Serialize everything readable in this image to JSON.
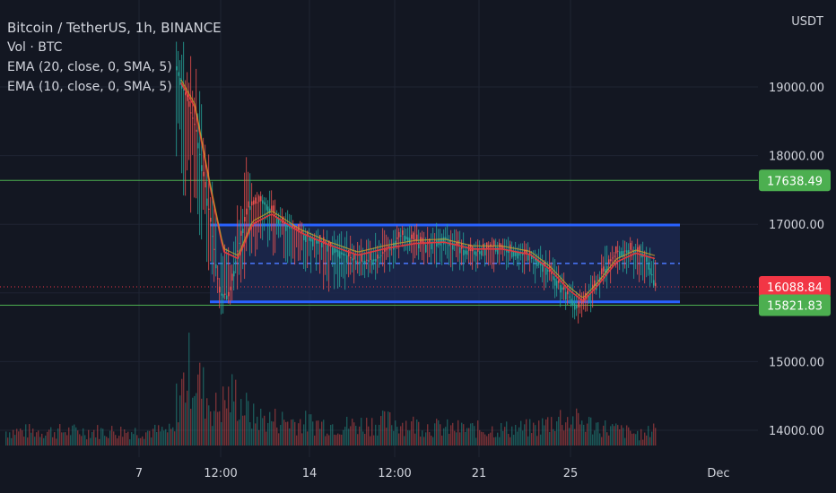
{
  "legend": {
    "symbol": "Bitcoin / TetherUS, 1h, BINANCE",
    "volume": "Vol · BTC",
    "ema_20": "EMA (20, close, 0, SMA, 5)",
    "ema_10": "EMA (10, close, 0, SMA, 5)"
  },
  "price_axis": {
    "unit": "USDT",
    "ticks": [
      19000,
      18000,
      17000,
      16000,
      15000,
      14000
    ],
    "tick_labels": [
      "19000.00",
      "18000.00",
      "17000.00",
      "16000.00",
      "15000.00",
      "14000.00"
    ]
  },
  "time_axis": {
    "labels": [
      "7",
      "12:00",
      "14",
      "12:00",
      "21",
      "25",
      "Dec"
    ]
  },
  "colors": {
    "background": "#131722",
    "grid": "#1f2433",
    "candle_up": "#26a69a",
    "candle_down": "#ef5350",
    "ema": "#e03a3e",
    "level_line": "#4caf50",
    "range_border": "#2962ff",
    "range_fill": "#1e2b55",
    "last_price": "#f23645"
  },
  "chart_data": {
    "type": "candlestick",
    "title": "Bitcoin / TetherUS, 1h, BINANCE",
    "ylabel": "USDT",
    "ylim": [
      13800,
      19700
    ],
    "x_axis_labels": [
      "7",
      "12:00",
      "14",
      "12:00",
      "21",
      "25",
      "Dec"
    ],
    "price_path": [
      [
        0.0,
        19300
      ],
      [
        0.04,
        18400
      ],
      [
        0.07,
        17100
      ],
      [
        0.09,
        16000
      ],
      [
        0.11,
        15950
      ],
      [
        0.13,
        16700
      ],
      [
        0.15,
        17250
      ],
      [
        0.18,
        17350
      ],
      [
        0.22,
        17020
      ],
      [
        0.28,
        16800
      ],
      [
        0.33,
        16650
      ],
      [
        0.38,
        16450
      ],
      [
        0.42,
        16500
      ],
      [
        0.47,
        16850
      ],
      [
        0.52,
        16700
      ],
      [
        0.56,
        16820
      ],
      [
        0.6,
        16620
      ],
      [
        0.63,
        16600
      ],
      [
        0.66,
        16680
      ],
      [
        0.7,
        16620
      ],
      [
        0.75,
        16520
      ],
      [
        0.78,
        16300
      ],
      [
        0.82,
        15950
      ],
      [
        0.84,
        15780
      ],
      [
        0.86,
        15950
      ],
      [
        0.89,
        16300
      ],
      [
        0.92,
        16600
      ],
      [
        0.95,
        16630
      ],
      [
        0.98,
        16560
      ],
      [
        1.0,
        16100
      ]
    ],
    "price_high_path": [
      [
        0.0,
        19800
      ],
      [
        0.04,
        19400
      ],
      [
        0.07,
        17900
      ],
      [
        0.09,
        16700
      ],
      [
        0.12,
        16900
      ],
      [
        0.14,
        18150
      ],
      [
        0.16,
        17600
      ],
      [
        0.2,
        17450
      ],
      [
        0.26,
        17000
      ],
      [
        0.32,
        16900
      ],
      [
        0.4,
        16800
      ],
      [
        0.46,
        17000
      ],
      [
        0.52,
        16950
      ],
      [
        0.56,
        17000
      ],
      [
        0.62,
        16800
      ],
      [
        0.7,
        16820
      ],
      [
        0.78,
        16600
      ],
      [
        0.84,
        16000
      ],
      [
        0.9,
        16700
      ],
      [
        0.95,
        16800
      ],
      [
        1.0,
        16650
      ]
    ],
    "price_low_path": [
      [
        0.0,
        17600
      ],
      [
        0.04,
        17000
      ],
      [
        0.07,
        16200
      ],
      [
        0.09,
        15700
      ],
      [
        0.12,
        15900
      ],
      [
        0.14,
        16200
      ],
      [
        0.18,
        16700
      ],
      [
        0.22,
        16400
      ],
      [
        0.28,
        16250
      ],
      [
        0.33,
        15900
      ],
      [
        0.38,
        16100
      ],
      [
        0.46,
        16350
      ],
      [
        0.52,
        16400
      ],
      [
        0.58,
        16350
      ],
      [
        0.64,
        16350
      ],
      [
        0.72,
        16300
      ],
      [
        0.78,
        15950
      ],
      [
        0.84,
        15560
      ],
      [
        0.88,
        15900
      ],
      [
        0.93,
        16300
      ],
      [
        1.0,
        16050
      ]
    ],
    "ema_path": [
      [
        0.0,
        19200
      ],
      [
        0.04,
        18700
      ],
      [
        0.07,
        17600
      ],
      [
        0.1,
        16600
      ],
      [
        0.13,
        16500
      ],
      [
        0.16,
        17000
      ],
      [
        0.2,
        17150
      ],
      [
        0.26,
        16880
      ],
      [
        0.32,
        16700
      ],
      [
        0.38,
        16550
      ],
      [
        0.44,
        16650
      ],
      [
        0.5,
        16720
      ],
      [
        0.56,
        16740
      ],
      [
        0.62,
        16640
      ],
      [
        0.68,
        16640
      ],
      [
        0.74,
        16560
      ],
      [
        0.78,
        16350
      ],
      [
        0.82,
        16050
      ],
      [
        0.85,
        15880
      ],
      [
        0.88,
        16100
      ],
      [
        0.92,
        16450
      ],
      [
        0.96,
        16580
      ],
      [
        1.0,
        16500
      ]
    ],
    "volume_profile": [
      [
        0.0,
        0.55
      ],
      [
        0.03,
        1.0
      ],
      [
        0.05,
        0.75
      ],
      [
        0.08,
        0.45
      ],
      [
        0.12,
        0.65
      ],
      [
        0.16,
        0.35
      ],
      [
        0.25,
        0.3
      ],
      [
        0.35,
        0.25
      ],
      [
        0.45,
        0.3
      ],
      [
        0.55,
        0.22
      ],
      [
        0.65,
        0.2
      ],
      [
        0.75,
        0.22
      ],
      [
        0.8,
        0.35
      ],
      [
        0.84,
        0.3
      ],
      [
        0.9,
        0.22
      ],
      [
        0.96,
        0.15
      ],
      [
        0.98,
        0.12
      ],
      [
        1.0,
        0.3
      ]
    ],
    "range_box": {
      "top": 16990,
      "bottom": 15870,
      "midline": 16430
    },
    "horizontal_levels": [
      17638.49,
      15821.83
    ],
    "last_price": 16088.84,
    "price_tags": [
      {
        "value": 17638.49,
        "label": "17638.49",
        "color": "#4caf50"
      },
      {
        "value": 16088.84,
        "label": "16088.84",
        "color": "#f23645"
      },
      {
        "value": 15821.83,
        "label": "15821.83",
        "color": "#4caf50"
      }
    ]
  }
}
